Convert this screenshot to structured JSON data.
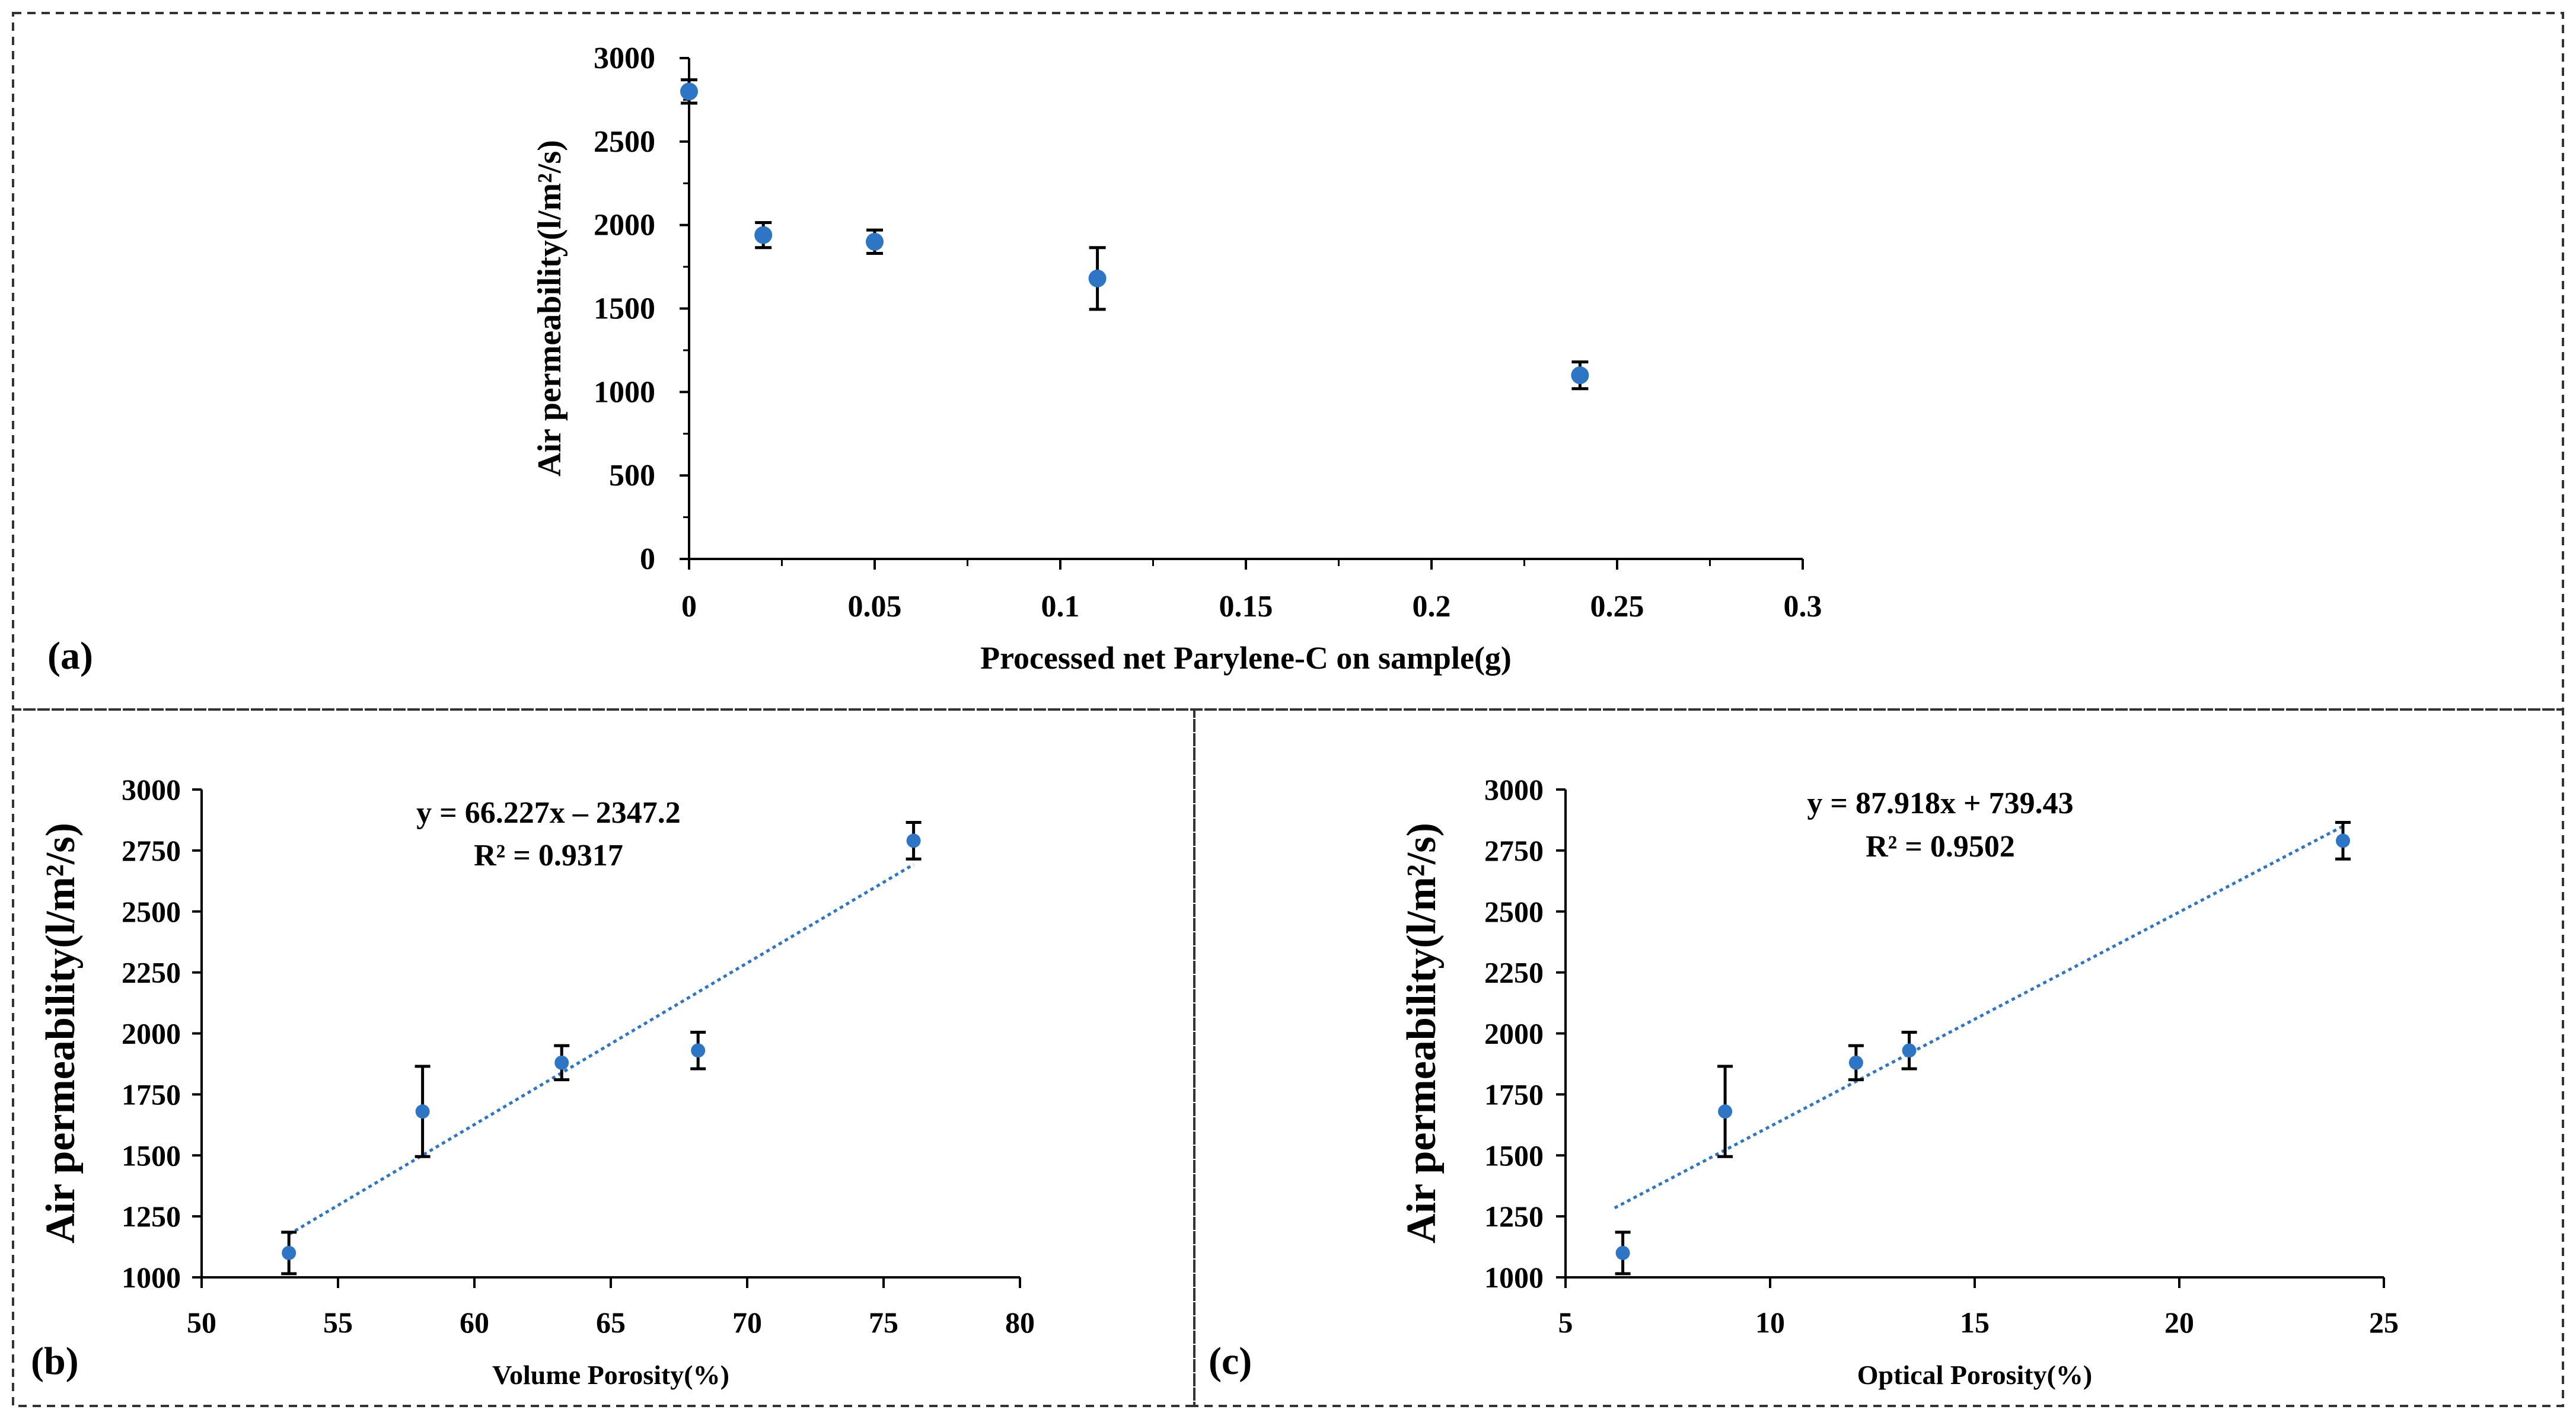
{
  "panels": [
    {
      "id": "a",
      "label": "(a)"
    },
    {
      "id": "b",
      "label": "(b)"
    },
    {
      "id": "c",
      "label": "(c)"
    }
  ],
  "chart_data": [
    {
      "panel": "(a)",
      "type": "scatter",
      "xlabel": "Processed net Parylene-C on sample(g)",
      "ylabel": "Air permeability(l/m²/s)",
      "xlim": [
        0,
        0.3
      ],
      "ylim": [
        0,
        3000
      ],
      "x_ticks": [
        0,
        0.05,
        0.1,
        0.15,
        0.2,
        0.25,
        0.3
      ],
      "x_tick_labels": [
        "0",
        "0.05",
        "0.1",
        "0.15",
        "0.2",
        "0.25",
        "0.3"
      ],
      "y_ticks": [
        0,
        500,
        1000,
        1500,
        2000,
        2500,
        3000
      ],
      "y_tick_labels": [
        "0",
        "500",
        "1000",
        "1500",
        "2000",
        "2500",
        "3000"
      ],
      "points": [
        {
          "x": 0,
          "y": 2800,
          "err": 70
        },
        {
          "x": 0.02,
          "y": 1940,
          "err": 75
        },
        {
          "x": 0.05,
          "y": 1900,
          "err": 70
        },
        {
          "x": 0.11,
          "y": 1680,
          "err": 185
        },
        {
          "x": 0.24,
          "y": 1100,
          "err": 80
        }
      ]
    },
    {
      "panel": "(b)",
      "type": "scatter",
      "xlabel": "Volume Porosity(%)",
      "ylabel": "Air permeability(l/m²/s)",
      "xlim": [
        50,
        80
      ],
      "ylim": [
        1000,
        3000
      ],
      "x_ticks": [
        50,
        55,
        60,
        65,
        70,
        75,
        80
      ],
      "x_tick_labels": [
        "50",
        "55",
        "60",
        "65",
        "70",
        "75",
        "80"
      ],
      "y_ticks": [
        1000,
        1250,
        1500,
        1750,
        2000,
        2250,
        2500,
        2750,
        3000
      ],
      "y_tick_labels": [
        "1000",
        "1250",
        "1500",
        "1750",
        "2000",
        "2250",
        "2500",
        "2750",
        "3000"
      ],
      "points": [
        {
          "x": 53.2,
          "y": 1100,
          "err": 85
        },
        {
          "x": 58.1,
          "y": 1680,
          "err": 185
        },
        {
          "x": 63.2,
          "y": 1880,
          "err": 70
        },
        {
          "x": 68.2,
          "y": 1930,
          "err": 75
        },
        {
          "x": 76.1,
          "y": 2790,
          "err": 75
        }
      ],
      "trendline": {
        "slope": 66.227,
        "intercept": -2347.2,
        "x_range": [
          53.2,
          76.1
        ]
      },
      "equation": "y = 66.227x – 2347.2",
      "r_squared": "R² = 0.9317"
    },
    {
      "panel": "(c)",
      "type": "scatter",
      "xlabel": "Optical Porosity(%)",
      "ylabel": "Air permeability(l/m²/s)",
      "xlim": [
        5,
        25
      ],
      "ylim": [
        1000,
        3000
      ],
      "x_ticks": [
        5,
        10,
        15,
        20,
        25
      ],
      "x_tick_labels": [
        "5",
        "10",
        "15",
        "20",
        "25"
      ],
      "y_ticks": [
        1000,
        1250,
        1500,
        1750,
        2000,
        2250,
        2500,
        2750,
        3000
      ],
      "y_tick_labels": [
        "1000",
        "1250",
        "1500",
        "1750",
        "2000",
        "2250",
        "2500",
        "2750",
        "3000"
      ],
      "points": [
        {
          "x": 6.4,
          "y": 1100,
          "err": 85
        },
        {
          "x": 8.9,
          "y": 1680,
          "err": 185
        },
        {
          "x": 12.1,
          "y": 1880,
          "err": 70
        },
        {
          "x": 13.4,
          "y": 1930,
          "err": 75
        },
        {
          "x": 24.0,
          "y": 2790,
          "err": 75
        }
      ],
      "trendline": {
        "slope": 87.918,
        "intercept": 739.43,
        "x_range": [
          6.2,
          24.0
        ]
      },
      "equation": "y = 87.918x + 739.43",
      "r_squared": "R² = 0.9502"
    }
  ],
  "colors": {
    "marker": "#2e75c6",
    "trendline": "#2e75c6",
    "axis": "#000000",
    "border": "#333333"
  }
}
